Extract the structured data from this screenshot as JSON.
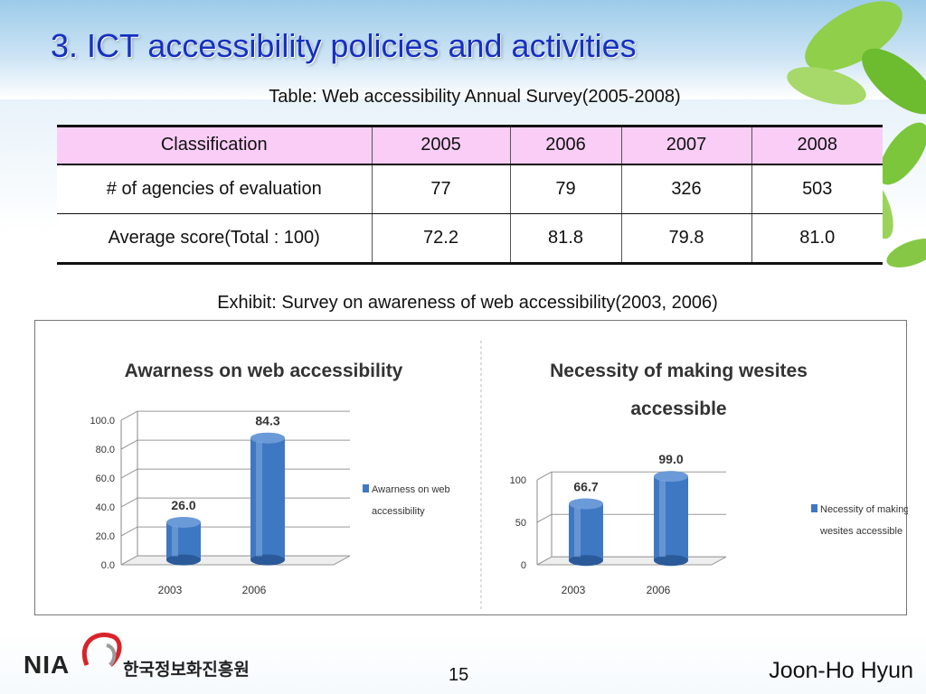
{
  "slide": {
    "title": "3. ICT accessibility policies and activities",
    "table_caption": "Table: Web accessibility Annual Survey(2005-2008)",
    "exhibit_caption": "Exhibit: Survey on awareness of web accessibility(2003, 2006)"
  },
  "table": {
    "headers": [
      "Classification",
      "2005",
      "2006",
      "2007",
      "2008"
    ],
    "rows": [
      [
        "# of agencies of evaluation",
        "77",
        "79",
        "326",
        "503"
      ],
      [
        "Average score(Total : 100)",
        "72.2",
        "81.8",
        "79.8",
        "81.0"
      ]
    ],
    "header_color": "#f9cdf6"
  },
  "chart_data": [
    {
      "type": "bar",
      "title": "Awarness on web accessibility",
      "categories": [
        "2003",
        "2006"
      ],
      "series": [
        {
          "name": "Awarness on web accessibility",
          "values": [
            26.0,
            84.3
          ],
          "color": "#3f78c2"
        }
      ],
      "data_labels": [
        "26.0",
        "84.3"
      ],
      "y_ticks": [
        "0.0",
        "20.0",
        "40.0",
        "60.0",
        "80.0",
        "100.0"
      ],
      "ylim": [
        0,
        100
      ],
      "legend": "right",
      "grid": true,
      "3d": true
    },
    {
      "type": "bar",
      "title": "Necessity of making wesites accessible",
      "categories": [
        "2003",
        "2006"
      ],
      "series": [
        {
          "name": "Necessity of making wesites accessible",
          "values": [
            66.7,
            99.0
          ],
          "color": "#3f78c2"
        }
      ],
      "data_labels": [
        "66.7",
        "99.0"
      ],
      "y_ticks": [
        "0",
        "50",
        "100"
      ],
      "ylim": [
        0,
        100
      ],
      "legend": "right",
      "grid": true,
      "3d": true
    }
  ],
  "footer": {
    "logo_text": "NIA",
    "org_name": "한국정보화진흥원",
    "page_number": "15",
    "author": "Joon-Ho Hyun"
  },
  "colors": {
    "title": "#1530c0",
    "bar": "#3f78c2"
  }
}
